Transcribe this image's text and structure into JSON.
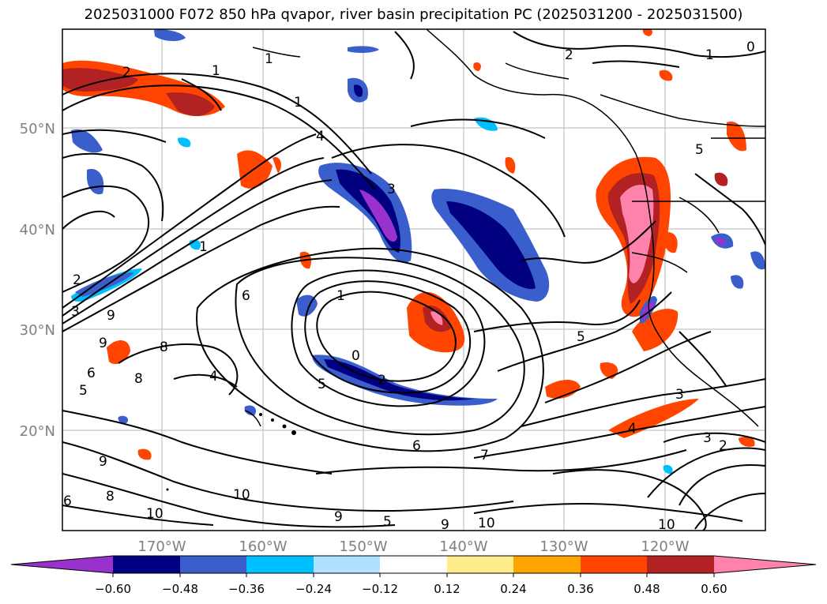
{
  "title": "2025031000 F072 850 hPa qvapor, river basin precipitation PC (2025031200 - 2025031500)",
  "axes": {
    "lat_labels": [
      "50°N",
      "40°N",
      "30°N",
      "20°N"
    ],
    "lon_labels": [
      "170°W",
      "160°W",
      "150°W",
      "140°W",
      "130°W",
      "120°W"
    ],
    "tick_color": "#808080"
  },
  "colorbar": {
    "colors": [
      "#9932cc",
      "#000080",
      "#3a5fcd",
      "#00bfff",
      "#b0e2ff",
      "#ffffff",
      "#ffec8b",
      "#ffa500",
      "#ff4500",
      "#b22222",
      "#ff82ab"
    ],
    "tick_labels": [
      "−0.60",
      "−0.48",
      "−0.36",
      "−0.24",
      "−0.12",
      "0.12",
      "0.24",
      "0.36",
      "0.48",
      "0.60"
    ]
  },
  "contour_labels": [
    "2",
    "1",
    "1",
    "4",
    "3",
    "1",
    "1",
    "2",
    "9",
    "3",
    "6",
    "9",
    "8",
    "4",
    "8",
    "5",
    "6",
    "1",
    "0",
    "2",
    "5",
    "6",
    "7",
    "9",
    "10",
    "10",
    "8",
    "6",
    "9",
    "5",
    "10",
    "9",
    "10",
    "5",
    "3",
    "4",
    "2",
    "3",
    "2",
    "0",
    "1",
    "5"
  ]
}
